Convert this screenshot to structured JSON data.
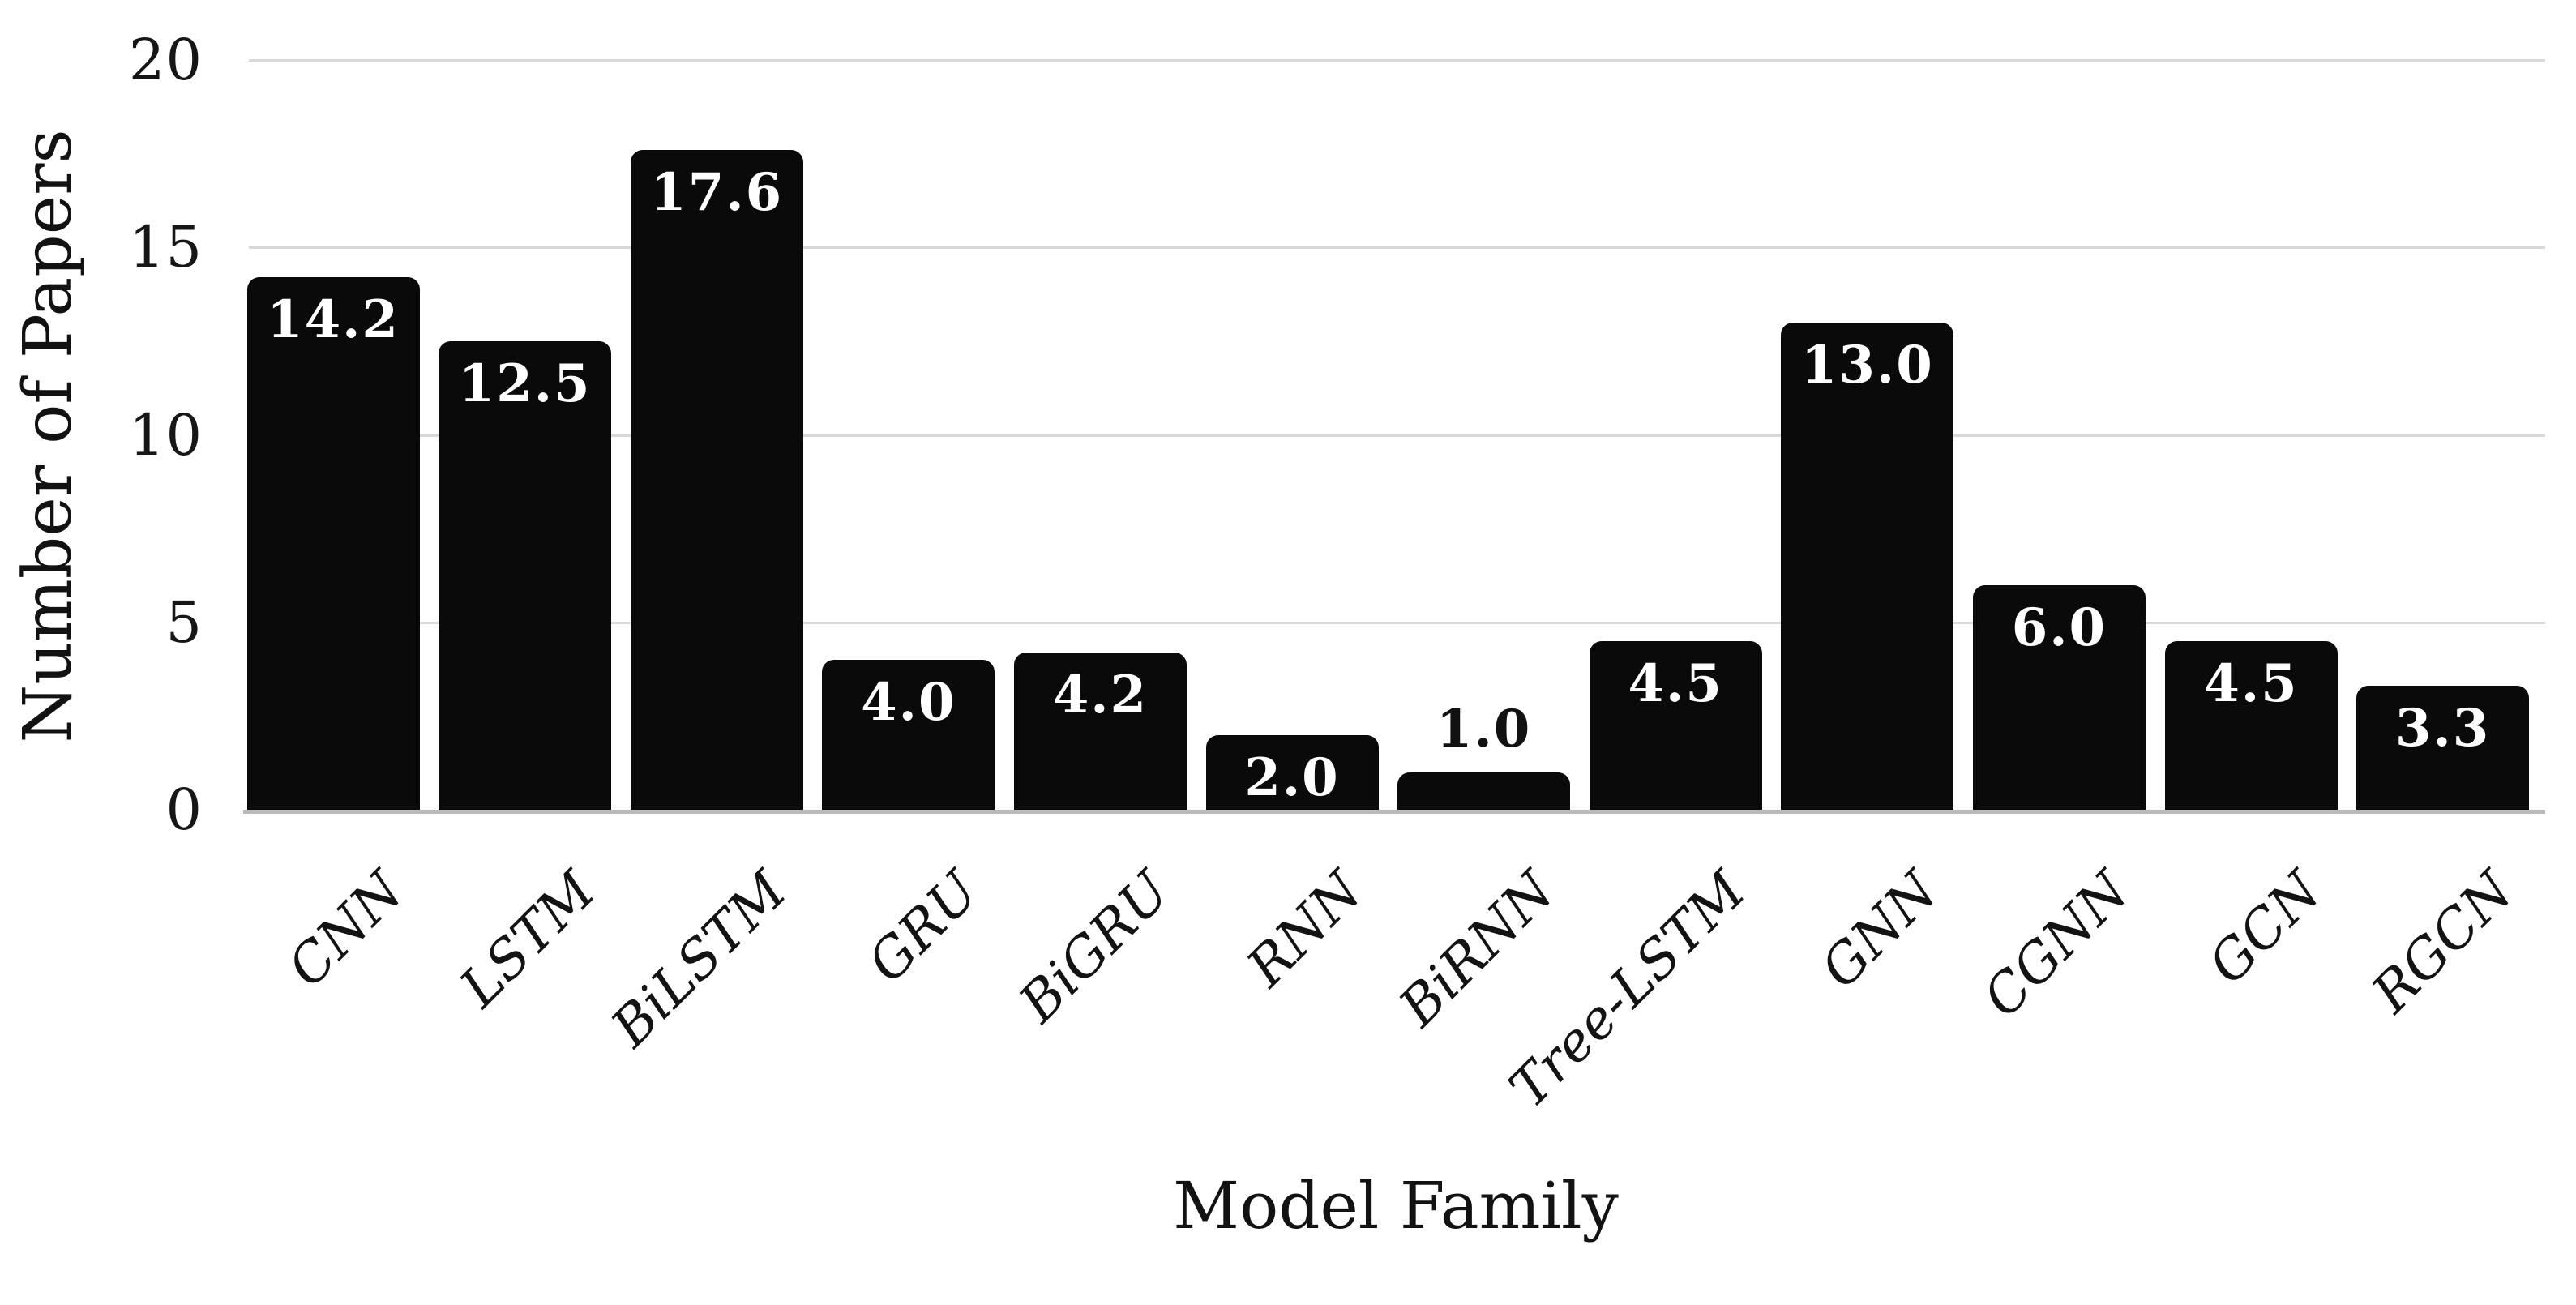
{
  "chart_data": {
    "type": "bar",
    "title": "",
    "xlabel": "Model Family",
    "ylabel": "Number of Papers",
    "categories": [
      "CNN",
      "LSTM",
      "BiLSTM",
      "GRU",
      "BiGRU",
      "RNN",
      "BiRNN",
      "Tree-LSTM",
      "GNN",
      "CGNN",
      "GCN",
      "RGCN"
    ],
    "values": [
      14.2,
      12.5,
      17.6,
      4.0,
      4.2,
      2.0,
      1.0,
      4.5,
      13.0,
      6.0,
      4.5,
      3.3
    ],
    "value_labels": [
      "14.2",
      "12.5",
      "17.6",
      "4.0",
      "4.2",
      "2.0",
      "1.0",
      "4.5",
      "13.0",
      "6.0",
      "4.5",
      "3.3"
    ],
    "value_label_placement": [
      "inside",
      "inside",
      "inside",
      "inside",
      "inside",
      "inside",
      "outside",
      "inside",
      "inside",
      "inside",
      "inside",
      "inside"
    ],
    "yticks": [
      0,
      5,
      10,
      15,
      20
    ],
    "ylim": [
      0,
      20
    ],
    "grid": "horizontal-only",
    "legend": "none",
    "colors": {
      "bar": "#0a0a0a",
      "value_label_inside": "#ffffff",
      "value_label_outside": "#111111",
      "gridline": "#d8d8d8",
      "baseline": "#b9b9b9",
      "background": "#ffffff",
      "axis_text": "#141414"
    }
  }
}
